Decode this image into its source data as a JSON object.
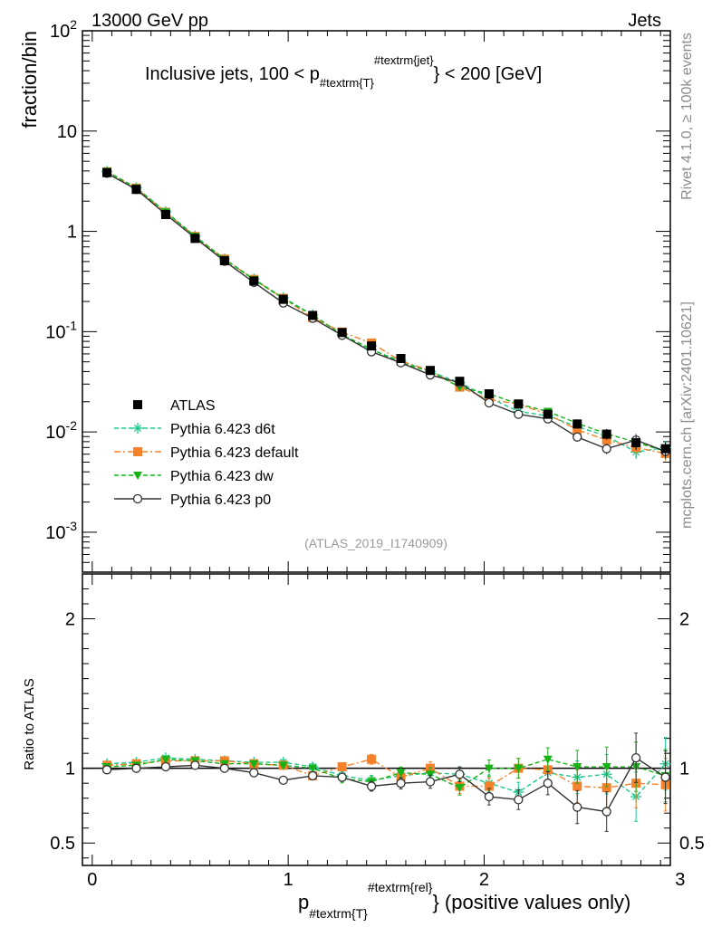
{
  "header": {
    "left": "13000 GeV pp",
    "right": "Jets"
  },
  "side_labels": {
    "rivet": "Rivet 4.1.0, ≥ 100k events",
    "mcplots": "mcplots.cern.ch [arXiv:2401.10621]"
  },
  "chart_data": {
    "type": "line",
    "title": "Inclusive jets, 100 < p_{#textrm{T}}^{#textrm{jet}} < 200 [GeV]",
    "title_parts": {
      "main": "Inclusive jets, 100 < p",
      "sub": "#textrm{T}",
      "sup": "#textrm{jet}",
      "tail": "} < 200 [GeV]"
    },
    "analysis_id": "(ATLAS_2019_I1740909)",
    "xlabel": "p_{#textrm{T}}^{#textrm{rel}} (positive values only)",
    "xlabel_parts": {
      "main": "p",
      "sub": "#textrm{T}",
      "sup": "#textrm{rel}",
      "tail": "} (positive values only)"
    },
    "ylabel": "fraction/bin",
    "ylabel_ratio": "Ratio to ATLAS",
    "xlim": [
      -0.05,
      2.95
    ],
    "ylim": [
      0.0004,
      100
    ],
    "yscale": "log",
    "ratio_ylim": [
      0.35,
      2.3
    ],
    "x_ticks": [
      "0",
      "1",
      "2",
      "3"
    ],
    "y_ticks": [
      "10^{-3}",
      "10^{-2}",
      "10^{-1}",
      "1",
      "10",
      "10^{2}"
    ],
    "ratio_ticks": [
      "0.5",
      "1",
      "2"
    ],
    "x": [
      0.075,
      0.225,
      0.375,
      0.525,
      0.675,
      0.825,
      0.975,
      1.125,
      1.275,
      1.425,
      1.575,
      1.725,
      1.875,
      2.025,
      2.175,
      2.325,
      2.475,
      2.625,
      2.775,
      2.925
    ],
    "series": [
      {
        "name": "ATLAS",
        "color": "#000000",
        "marker": "square",
        "line": "none",
        "values": [
          3.85,
          2.62,
          1.47,
          0.85,
          0.51,
          0.32,
          0.21,
          0.145,
          0.098,
          0.072,
          0.054,
          0.041,
          0.032,
          0.024,
          0.019,
          0.015,
          0.012,
          0.0095,
          0.0078,
          0.0068
        ]
      },
      {
        "name": "Pythia 6.423 d6t",
        "color": "#1bc98e",
        "marker": "star",
        "line": "dashed",
        "values": [
          3.96,
          2.72,
          1.57,
          0.9,
          0.53,
          0.335,
          0.218,
          0.147,
          0.093,
          0.066,
          0.051,
          0.04,
          0.031,
          0.022,
          0.016,
          0.0145,
          0.0113,
          0.0091,
          0.0063,
          0.007
        ],
        "ratio": [
          1.03,
          1.04,
          1.07,
          1.06,
          1.05,
          1.04,
          1.04,
          1.01,
          0.95,
          0.92,
          0.95,
          0.97,
          0.96,
          0.9,
          0.84,
          0.97,
          0.94,
          0.96,
          0.81,
          1.03
        ]
      },
      {
        "name": "Pythia 6.423 default",
        "color": "#f5812a",
        "marker": "square",
        "line": "dashdot",
        "values": [
          3.93,
          2.7,
          1.55,
          0.89,
          0.53,
          0.332,
          0.215,
          0.138,
          0.099,
          0.077,
          0.051,
          0.041,
          0.028,
          0.021,
          0.019,
          0.015,
          0.0105,
          0.0083,
          0.007,
          0.0061
        ],
        "ratio": [
          1.02,
          1.03,
          1.05,
          1.05,
          1.05,
          1.03,
          1.02,
          0.95,
          1.01,
          1.06,
          0.94,
          1.0,
          0.88,
          0.88,
          1.0,
          0.99,
          0.88,
          0.87,
          0.9,
          0.89
        ]
      },
      {
        "name": "Pythia 6.423 dw",
        "color": "#16b314",
        "marker": "triangle",
        "line": "dashed",
        "values": [
          3.97,
          2.7,
          1.56,
          0.89,
          0.525,
          0.33,
          0.214,
          0.147,
          0.093,
          0.067,
          0.049,
          0.04,
          0.028,
          0.024,
          0.019,
          0.016,
          0.0122,
          0.0096,
          0.0079,
          0.0064
        ],
        "ratio": [
          1.01,
          1.02,
          1.06,
          1.05,
          1.03,
          1.03,
          1.02,
          1.0,
          0.93,
          0.91,
          0.97,
          0.96,
          0.87,
          1.0,
          1.0,
          1.06,
          1.01,
          1.01,
          1.01,
          0.95
        ]
      },
      {
        "name": "Pythia 6.423 p0",
        "color": "#333333",
        "marker": "circle-open",
        "line": "solid",
        "values": [
          3.8,
          2.62,
          1.48,
          0.86,
          0.505,
          0.31,
          0.193,
          0.136,
          0.092,
          0.063,
          0.049,
          0.037,
          0.031,
          0.0195,
          0.015,
          0.0135,
          0.0089,
          0.0068,
          0.0083,
          0.0064
        ],
        "ratio": [
          0.99,
          1.0,
          1.01,
          1.02,
          1.0,
          0.97,
          0.92,
          0.95,
          0.94,
          0.88,
          0.9,
          0.91,
          0.96,
          0.81,
          0.79,
          0.9,
          0.74,
          0.71,
          1.07,
          0.94
        ]
      }
    ]
  }
}
